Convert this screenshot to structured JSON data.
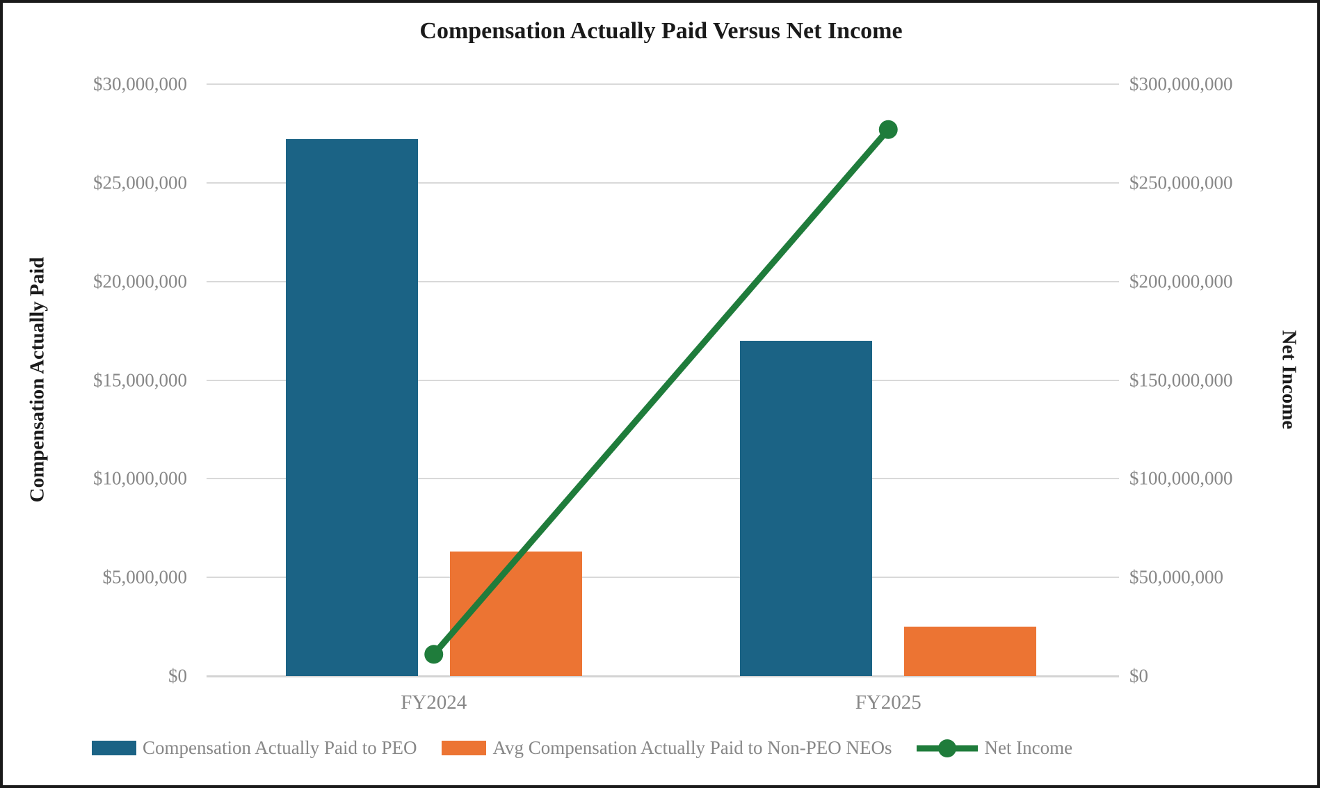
{
  "title": "Compensation Actually Paid Versus Net Income",
  "axes": {
    "left": {
      "title": "Compensation Actually Paid",
      "tick_labels": [
        "$0",
        "$5,000,000",
        "$10,000,000",
        "$15,000,000",
        "$20,000,000",
        "$25,000,000",
        "$30,000,000"
      ]
    },
    "right": {
      "title": "Net Income",
      "tick_labels": [
        "$0",
        "$50,000,000",
        "$100,000,000",
        "$150,000,000",
        "$200,000,000",
        "$250,000,000",
        "$300,000,000"
      ]
    }
  },
  "x_axis": {
    "labels": [
      "FY2024",
      "FY2025"
    ]
  },
  "legend": [
    {
      "label": "Compensation Actually Paid to PEO",
      "marker": "square",
      "color": "#1B6385"
    },
    {
      "label": "Avg Compensation Actually Paid to Non-PEO NEOs",
      "marker": "square",
      "color": "#EC7433"
    },
    {
      "label": "Net Income",
      "marker": "line-dot",
      "color": "#1F7C3B"
    }
  ],
  "colors": {
    "peo_bar": "#1B6385",
    "neo_bar": "#EC7433",
    "net_income_line": "#1F7C3B",
    "gridline": "#D9D9D9",
    "tick_text": "#878787",
    "title_text": "#1A1A1A"
  },
  "chart_data": {
    "type": "bar",
    "categories": [
      "FY2024",
      "FY2025"
    ],
    "series": [
      {
        "name": "Compensation Actually Paid to PEO",
        "type": "bar",
        "axis": "left",
        "color": "#1B6385",
        "values": [
          27200000,
          17000000
        ]
      },
      {
        "name": "Avg Compensation Actually Paid to Non-PEO NEOs",
        "type": "bar",
        "axis": "left",
        "color": "#EC7433",
        "values": [
          6300000,
          2500000
        ]
      },
      {
        "name": "Net Income",
        "type": "line",
        "axis": "right",
        "color": "#1F7C3B",
        "values": [
          11000000,
          277000000
        ]
      }
    ],
    "title": "Compensation Actually Paid Versus Net Income",
    "ylabel_left": "Compensation Actually Paid",
    "ylabel_right": "Net Income",
    "ylim_left": [
      0,
      30000000
    ],
    "ylim_right": [
      0,
      300000000
    ],
    "ytick_step_left": 5000000,
    "ytick_step_right": 50000000,
    "grid": true,
    "legend_position": "bottom"
  }
}
